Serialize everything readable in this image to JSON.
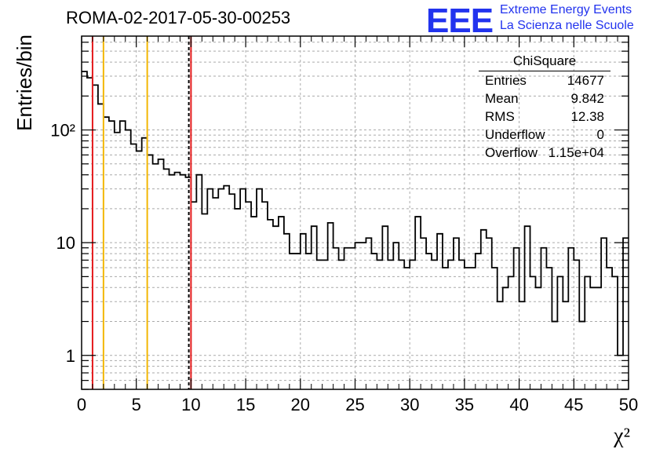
{
  "title": "ROMA-02-2017-05-30-00253",
  "logo": {
    "mark": "EEE",
    "line1": "Extreme Energy Events",
    "line2": "La Scienza nelle Scuole",
    "color": "#2233ee"
  },
  "stats": {
    "title": "ChiSquare",
    "rows": [
      {
        "key": "Entries",
        "value": "14677"
      },
      {
        "key": "Mean",
        "value": "9.842"
      },
      {
        "key": "RMS",
        "value": "12.38"
      },
      {
        "key": "Underflow",
        "value": "0"
      },
      {
        "key": "Overflow",
        "value": "1.15e+04"
      }
    ]
  },
  "chart_data": {
    "type": "histogram",
    "title": "ROMA-02-2017-05-30-00253",
    "xlabel": "χ²",
    "ylabel": "Entries/bin",
    "xlim": [
      0,
      50
    ],
    "ylim": [
      0.5,
      680
    ],
    "yscale": "log",
    "bin_width": 0.5,
    "grid": true,
    "x_ticks": [
      0,
      5,
      10,
      15,
      20,
      25,
      30,
      35,
      40,
      45,
      50
    ],
    "y_tick_labels": [
      "1",
      "10",
      "10²"
    ],
    "y_tick_values": [
      1,
      10,
      100
    ],
    "counts": [
      330,
      290,
      250,
      170,
      130,
      120,
      95,
      120,
      100,
      75,
      65,
      85,
      60,
      50,
      55,
      45,
      40,
      42,
      40,
      38,
      23,
      40,
      18,
      30,
      25,
      30,
      32,
      27,
      20,
      30,
      23,
      17,
      30,
      23,
      16,
      14,
      17,
      12,
      8,
      8,
      12,
      8,
      14,
      7,
      7,
      15,
      9,
      7,
      9,
      9,
      10,
      10,
      11,
      8,
      7,
      14,
      7,
      10,
      7,
      6,
      7,
      17,
      11,
      8,
      7,
      12,
      6,
      7,
      11,
      7,
      6,
      6,
      8,
      13,
      11,
      6,
      3,
      4,
      5,
      9,
      3,
      14,
      5,
      4,
      9,
      6,
      2,
      5,
      3,
      9,
      7,
      2,
      5,
      4,
      4,
      11,
      6,
      5,
      1,
      11
    ],
    "vertical_lines": [
      {
        "x": 1,
        "color": "#e41a1c",
        "style": "solid"
      },
      {
        "x": 2,
        "color": "#f2b705",
        "style": "solid"
      },
      {
        "x": 6,
        "color": "#f2b705",
        "style": "solid"
      },
      {
        "x": 9.8,
        "color": "#000000",
        "style": "dashed"
      },
      {
        "x": 10,
        "color": "#e41a1c",
        "style": "solid"
      }
    ],
    "legend_position": "top-right"
  }
}
